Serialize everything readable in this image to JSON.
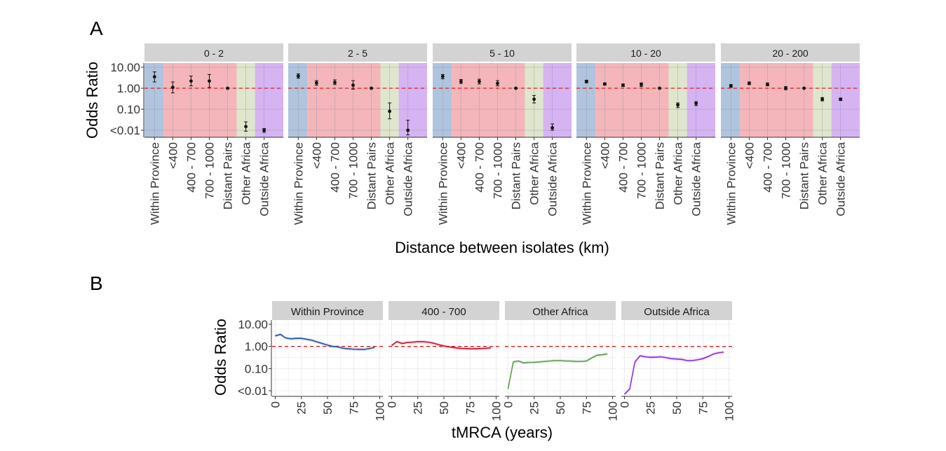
{
  "panel_labels": [
    "A",
    "B"
  ],
  "colors": {
    "within": "#b0c4de",
    "km": "#f4b6bb",
    "other_africa": "#dfe6cc",
    "outside_africa": "#d6b3f2",
    "refline": "#e41a1c",
    "strip": "#d3d3d3",
    "line_within": "#1f4e9b",
    "line_400_700": "#c8102e",
    "line_other_africa": "#5b9a4a",
    "line_outside_africa": "#8a2be2"
  },
  "chart_data": [
    {
      "type": "scatter",
      "panel": "A",
      "ylabel": "Odds Ratio",
      "xlabel": "Distance between isolates (km)",
      "yscale": "log",
      "yticks": [
        "10.00",
        "1.00",
        "0.10",
        "<0.01"
      ],
      "categories": [
        "Within Province",
        "<400",
        "400 - 700",
        "700 - 1000",
        "Distant Pairs",
        "Other Africa",
        "Outside Africa"
      ],
      "reference_line": 1,
      "facets": [
        {
          "label": "0 - 2",
          "values": [
            3.5,
            1.1,
            2.2,
            2.2,
            1.0,
            0.015,
            0.01
          ],
          "lower": [
            2.0,
            0.6,
            1.3,
            1.1,
            1.0,
            0.009,
            0.008
          ],
          "upper": [
            6.0,
            2.0,
            3.8,
            4.5,
            1.0,
            0.025,
            0.012
          ]
        },
        {
          "label": "2 - 5",
          "values": [
            3.8,
            1.8,
            1.9,
            1.4,
            1.0,
            0.08,
            0.01
          ],
          "lower": [
            3.0,
            1.4,
            1.5,
            0.9,
            1.0,
            0.035,
            0.006
          ],
          "upper": [
            4.8,
            2.3,
            2.5,
            2.3,
            1.0,
            0.2,
            0.03
          ]
        },
        {
          "label": "5 - 10",
          "values": [
            3.6,
            2.1,
            2.1,
            1.7,
            1.0,
            0.3,
            0.013
          ],
          "lower": [
            2.8,
            1.7,
            1.6,
            1.3,
            1.0,
            0.2,
            0.01
          ],
          "upper": [
            4.5,
            2.6,
            2.7,
            2.3,
            1.0,
            0.45,
            0.02
          ]
        },
        {
          "label": "10 - 20",
          "values": [
            2.1,
            1.6,
            1.4,
            1.5,
            1.0,
            0.16,
            0.19
          ],
          "lower": [
            1.8,
            1.4,
            1.2,
            1.2,
            1.0,
            0.12,
            0.15
          ],
          "upper": [
            2.4,
            1.8,
            1.6,
            1.8,
            1.0,
            0.2,
            0.23
          ]
        },
        {
          "label": "20 - 200",
          "values": [
            1.3,
            1.7,
            1.5,
            1.0,
            1.0,
            0.3,
            0.3
          ],
          "lower": [
            1.1,
            1.5,
            1.3,
            0.85,
            1.0,
            0.25,
            0.26
          ],
          "upper": [
            1.5,
            2.0,
            1.8,
            1.2,
            1.0,
            0.36,
            0.34
          ]
        }
      ]
    },
    {
      "type": "line",
      "panel": "B",
      "ylabel": "Odds Ratio",
      "xlabel": "tMRCA (years)",
      "yscale": "log",
      "yticks": [
        "10.00",
        "1.00",
        "0.10",
        "<0.01"
      ],
      "xticks": [
        0,
        25,
        50,
        75,
        100
      ],
      "xlim": [
        -3,
        103
      ],
      "reference_line": 1,
      "facets": [
        {
          "label": "Within Province",
          "x": [
            0,
            5,
            10,
            15,
            20,
            25,
            30,
            35,
            40,
            45,
            50,
            55,
            60,
            65,
            70,
            75,
            80,
            85,
            90,
            95
          ],
          "y": [
            3.0,
            3.5,
            2.4,
            2.2,
            2.3,
            2.3,
            2.1,
            1.9,
            1.6,
            1.35,
            1.15,
            1.0,
            0.95,
            0.82,
            0.78,
            0.75,
            0.74,
            0.73,
            0.8,
            0.9
          ]
        },
        {
          "label": "400 - 700",
          "x": [
            0,
            5,
            10,
            15,
            20,
            25,
            30,
            35,
            40,
            45,
            50,
            55,
            60,
            65,
            70,
            75,
            80,
            85,
            90,
            95
          ],
          "y": [
            1.1,
            1.65,
            1.35,
            1.5,
            1.55,
            1.65,
            1.65,
            1.55,
            1.4,
            1.2,
            1.05,
            0.95,
            0.88,
            0.82,
            0.8,
            0.78,
            0.78,
            0.8,
            0.82,
            0.86
          ]
        },
        {
          "label": "Other Africa",
          "x": [
            0,
            5,
            10,
            15,
            20,
            25,
            30,
            35,
            40,
            45,
            50,
            55,
            60,
            65,
            70,
            75,
            80,
            85,
            90,
            95
          ],
          "y": [
            0.012,
            0.2,
            0.22,
            0.18,
            0.19,
            0.19,
            0.2,
            0.21,
            0.22,
            0.23,
            0.23,
            0.22,
            0.22,
            0.21,
            0.21,
            0.22,
            0.3,
            0.4,
            0.42,
            0.46
          ]
        },
        {
          "label": "Outside Africa",
          "x": [
            0,
            5,
            10,
            15,
            20,
            25,
            30,
            35,
            40,
            45,
            50,
            55,
            60,
            65,
            70,
            75,
            80,
            85,
            90,
            95
          ],
          "y": [
            0.007,
            0.012,
            0.2,
            0.38,
            0.34,
            0.32,
            0.33,
            0.34,
            0.31,
            0.28,
            0.27,
            0.26,
            0.23,
            0.23,
            0.25,
            0.28,
            0.35,
            0.45,
            0.52,
            0.55
          ]
        }
      ]
    }
  ]
}
